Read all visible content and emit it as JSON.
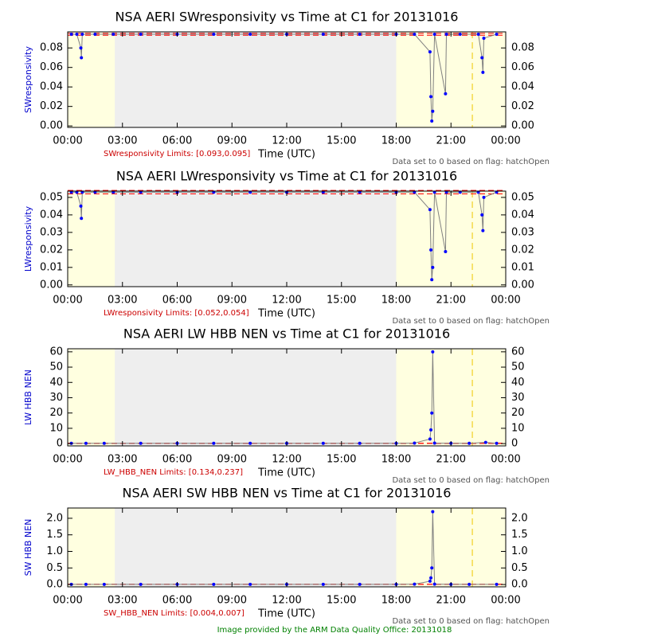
{
  "chart_data": [
    {
      "type": "line",
      "title": "NSA AERI SWresponsivity vs Time at C1 for 20131016",
      "ylabel": "SWresponsivity",
      "xlabel": "Time (UTC)",
      "limits_label": "SWresponsivity Limits: [0.093,0.095]",
      "limits": [
        0.093,
        0.095
      ],
      "note": "Data set to 0 based on flag: hatchOpen",
      "shaded_xrange": [
        2.58,
        18
      ],
      "flag_x": 22.17,
      "xlim": [
        0,
        24
      ],
      "xticks": [
        {
          "value": 0,
          "label": "00:00"
        },
        {
          "value": 3,
          "label": "03:00"
        },
        {
          "value": 6,
          "label": "06:00"
        },
        {
          "value": 9,
          "label": "09:00"
        },
        {
          "value": 12,
          "label": "12:00"
        },
        {
          "value": 15,
          "label": "15:00"
        },
        {
          "value": 18,
          "label": "18:00"
        },
        {
          "value": 21,
          "label": "21:00"
        },
        {
          "value": 24,
          "label": "00:00"
        }
      ],
      "ylim": [
        -0.0015,
        0.0965
      ],
      "yticks": [
        {
          "value": 0,
          "label": "0.00"
        },
        {
          "value": 0.02,
          "label": "0.02"
        },
        {
          "value": 0.04,
          "label": "0.04"
        },
        {
          "value": 0.06,
          "label": "0.06"
        },
        {
          "value": 0.08,
          "label": "0.08"
        }
      ],
      "series": [
        {
          "color": "#0000ff",
          "line_color": "#808080",
          "x": [
            0.2,
            0.5,
            0.72,
            0.75,
            0.8,
            1.5,
            2.5,
            4,
            6,
            8,
            10,
            12,
            14,
            16,
            18,
            19,
            19.85,
            19.9,
            19.95,
            20,
            20.1,
            20.7,
            20.75,
            21.5,
            22.5,
            22.7,
            22.75,
            22.8,
            23.5
          ],
          "values": [
            0.094,
            0.094,
            0.08,
            0.07,
            0.094,
            0.094,
            0.094,
            0.094,
            0.094,
            0.094,
            0.094,
            0.094,
            0.094,
            0.094,
            0.094,
            0.094,
            0.076,
            0.03,
            0.005,
            0.015,
            0.094,
            0.033,
            0.094,
            0.094,
            0.094,
            0.07,
            0.055,
            0.09,
            0.094
          ]
        }
      ]
    },
    {
      "type": "line",
      "title": "NSA AERI LWresponsivity vs Time at C1 for 20131016",
      "ylabel": "LWresponsivity",
      "xlabel": "Time (UTC)",
      "limits_label": "LWresponsivity Limits: [0.052,0.054]",
      "limits": [
        0.052,
        0.054
      ],
      "note": "Data set to 0 based on flag: hatchOpen",
      "shaded_xrange": [
        2.58,
        18
      ],
      "flag_x": 22.17,
      "xlim": [
        0,
        24
      ],
      "xticks": [
        {
          "value": 0,
          "label": "00:00"
        },
        {
          "value": 3,
          "label": "03:00"
        },
        {
          "value": 6,
          "label": "06:00"
        },
        {
          "value": 9,
          "label": "09:00"
        },
        {
          "value": 12,
          "label": "12:00"
        },
        {
          "value": 15,
          "label": "15:00"
        },
        {
          "value": 18,
          "label": "18:00"
        },
        {
          "value": 21,
          "label": "21:00"
        },
        {
          "value": 24,
          "label": "00:00"
        }
      ],
      "ylim": [
        -0.001,
        0.0536
      ],
      "yticks": [
        {
          "value": 0,
          "label": "0.00"
        },
        {
          "value": 0.01,
          "label": "0.01"
        },
        {
          "value": 0.02,
          "label": "0.02"
        },
        {
          "value": 0.03,
          "label": "0.03"
        },
        {
          "value": 0.04,
          "label": "0.04"
        },
        {
          "value": 0.05,
          "label": "0.05"
        }
      ],
      "series": [
        {
          "color": "#0000ff",
          "line_color": "#808080",
          "x": [
            0.2,
            0.5,
            0.72,
            0.75,
            0.8,
            1.5,
            2.5,
            4,
            6,
            8,
            10,
            12,
            14,
            16,
            18,
            19,
            19.85,
            19.9,
            19.95,
            20,
            20.1,
            20.7,
            20.75,
            21.5,
            22.5,
            22.7,
            22.75,
            22.8,
            23.5
          ],
          "values": [
            0.053,
            0.053,
            0.045,
            0.038,
            0.053,
            0.053,
            0.053,
            0.053,
            0.053,
            0.053,
            0.053,
            0.053,
            0.053,
            0.053,
            0.053,
            0.053,
            0.043,
            0.02,
            0.003,
            0.01,
            0.053,
            0.019,
            0.053,
            0.053,
            0.053,
            0.04,
            0.031,
            0.05,
            0.053
          ]
        }
      ]
    },
    {
      "type": "line",
      "title": "NSA AERI LW HBB NEN vs Time at C1 for 20131016",
      "ylabel": "LW HBB NEN",
      "xlabel": "Time (UTC)",
      "limits_label": "LW_HBB_NEN Limits: [0.134,0.237]",
      "limits": [
        0.134,
        0.237
      ],
      "note": "Data set to 0 based on flag: hatchOpen",
      "shaded_xrange": [
        2.58,
        18
      ],
      "flag_x": 22.17,
      "xlim": [
        0,
        24
      ],
      "xticks": [
        {
          "value": 0,
          "label": "00:00"
        },
        {
          "value": 3,
          "label": "03:00"
        },
        {
          "value": 6,
          "label": "06:00"
        },
        {
          "value": 9,
          "label": "09:00"
        },
        {
          "value": 12,
          "label": "12:00"
        },
        {
          "value": 15,
          "label": "15:00"
        },
        {
          "value": 18,
          "label": "18:00"
        },
        {
          "value": 21,
          "label": "21:00"
        },
        {
          "value": 24,
          "label": "00:00"
        }
      ],
      "ylim": [
        -1.5,
        62
      ],
      "yticks": [
        0,
        10,
        20,
        30,
        40,
        50,
        60
      ],
      "series": [
        {
          "color": "#0000ff",
          "line_color": "#808080",
          "x": [
            0.2,
            1,
            2,
            4,
            6,
            8,
            10,
            12,
            14,
            16,
            18,
            19,
            19.85,
            19.9,
            19.95,
            20,
            20.1,
            21,
            22,
            22.9,
            23.5
          ],
          "values": [
            0.2,
            0.2,
            0.2,
            0.2,
            0.2,
            0.2,
            0.2,
            0.2,
            0.2,
            0.2,
            0.2,
            0.3,
            3,
            9,
            20,
            60,
            0.3,
            0.2,
            0.2,
            0.8,
            0.2
          ]
        }
      ]
    },
    {
      "type": "line",
      "title": "NSA AERI SW HBB NEN vs Time at C1 for 20131016",
      "ylabel": "SW HBB NEN",
      "xlabel": "Time (UTC)",
      "limits_label": "SW_HBB_NEN Limits: [0.004,0.007]",
      "limits": [
        0.004,
        0.007
      ],
      "note": "Data set to 0 based on flag: hatchOpen",
      "shaded_xrange": [
        2.58,
        18
      ],
      "flag_x": 22.17,
      "xlim": [
        0,
        24
      ],
      "xticks": [
        {
          "value": 0,
          "label": "00:00"
        },
        {
          "value": 3,
          "label": "03:00"
        },
        {
          "value": 6,
          "label": "06:00"
        },
        {
          "value": 9,
          "label": "09:00"
        },
        {
          "value": 12,
          "label": "12:00"
        },
        {
          "value": 15,
          "label": "15:00"
        },
        {
          "value": 18,
          "label": "18:00"
        },
        {
          "value": 21,
          "label": "21:00"
        },
        {
          "value": 24,
          "label": "00:00"
        }
      ],
      "ylim": [
        -0.07,
        2.31
      ],
      "yticks": [
        {
          "value": 0,
          "label": "0.0"
        },
        {
          "value": 0.5,
          "label": "0.5"
        },
        {
          "value": 1,
          "label": "1.0"
        },
        {
          "value": 1.5,
          "label": "1.5"
        },
        {
          "value": 2,
          "label": "2.0"
        }
      ],
      "series": [
        {
          "color": "#0000ff",
          "line_color": "#808080",
          "x": [
            0.2,
            1,
            2,
            4,
            6,
            8,
            10,
            12,
            14,
            16,
            18,
            19,
            19.85,
            19.9,
            19.95,
            20,
            20.1,
            21,
            22,
            23.5
          ],
          "values": [
            0.006,
            0.006,
            0.006,
            0.006,
            0.006,
            0.006,
            0.006,
            0.006,
            0.006,
            0.006,
            0.006,
            0.01,
            0.1,
            0.2,
            0.5,
            2.2,
            0.01,
            0.006,
            0.006,
            0.006
          ]
        }
      ]
    }
  ],
  "footer": "Image provided by the ARM Data Quality Office: 20131018"
}
